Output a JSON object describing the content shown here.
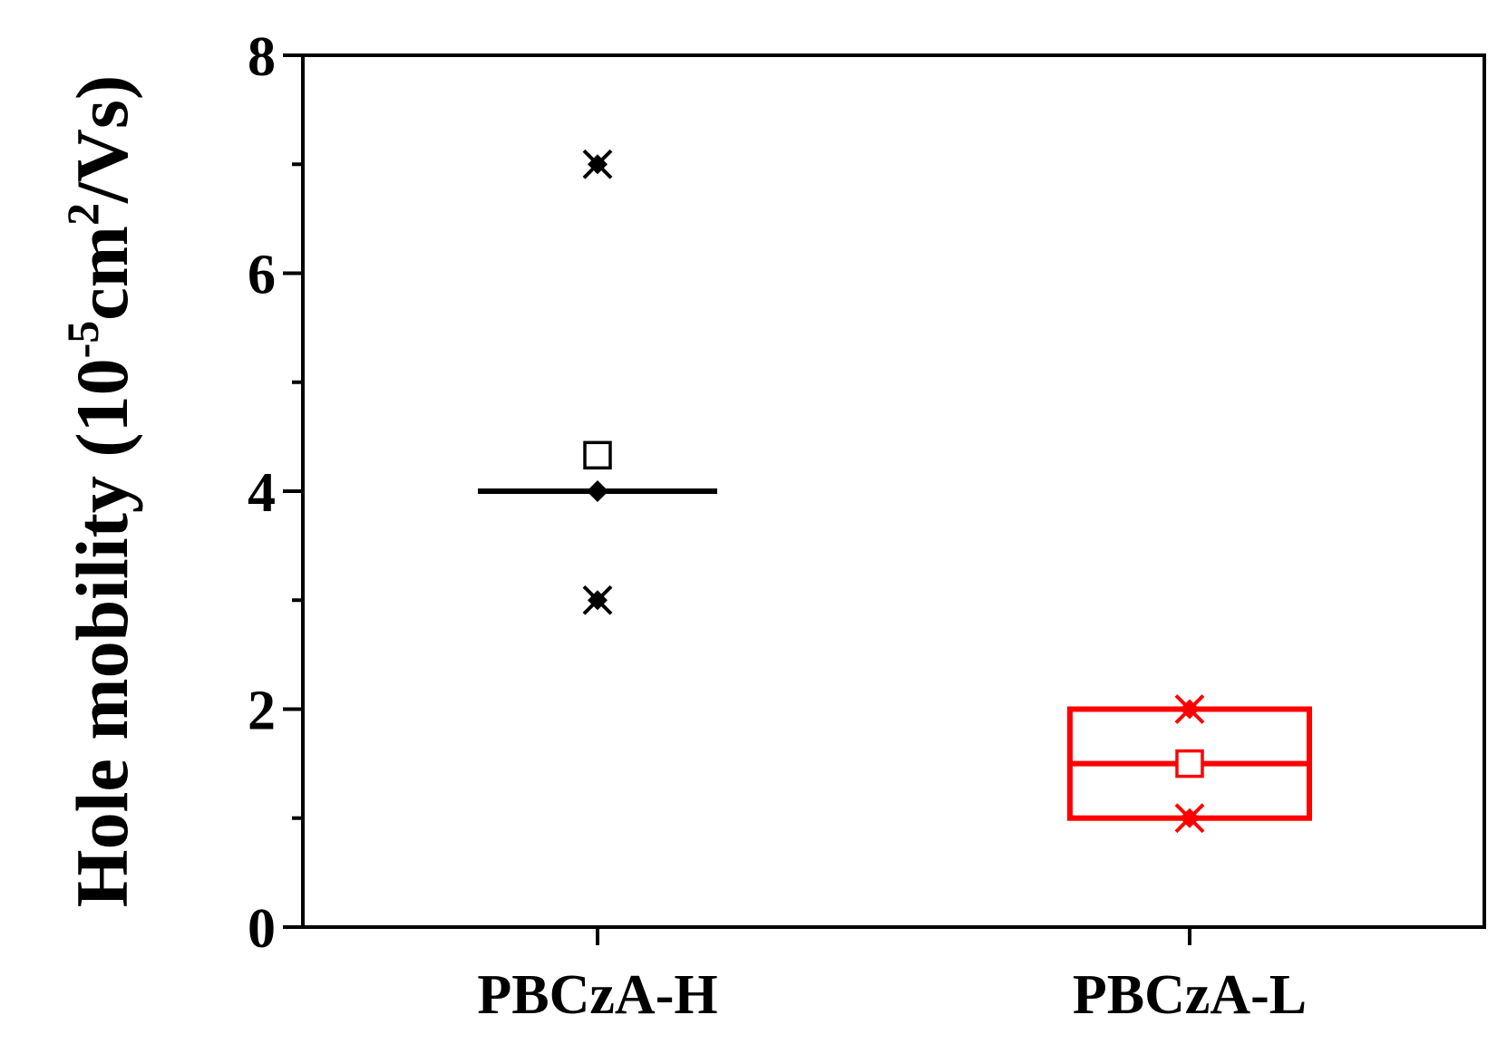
{
  "chart_data": {
    "type": "box",
    "ylabel": {
      "prefix": "Hole mobility (10",
      "sup1": "-5",
      "middle": "cm",
      "sup2": "2",
      "suffix": "/Vs)"
    },
    "xlabel": "",
    "ylim": [
      0,
      8
    ],
    "yticks_major": [
      0,
      2,
      4,
      6,
      8
    ],
    "yticks_minor": [
      1,
      3,
      5,
      7
    ],
    "categories": [
      "PBCzA-H",
      "PBCzA-L"
    ],
    "series": [
      {
        "category": "PBCzA-H",
        "color": "#000000",
        "q1": 4.0,
        "median": 4.0,
        "q3": 4.0,
        "mean": 4.33,
        "min": 3.0,
        "max": 7.0,
        "points": [
          3.0,
          4.0,
          7.0
        ]
      },
      {
        "category": "PBCzA-L",
        "color": "#ff0000",
        "q1": 1.0,
        "median": 1.5,
        "q3": 2.0,
        "mean": 1.5,
        "min": 1.0,
        "max": 2.0,
        "points": [
          1.0,
          2.0
        ]
      }
    ],
    "grid": false,
    "legend": "none"
  }
}
